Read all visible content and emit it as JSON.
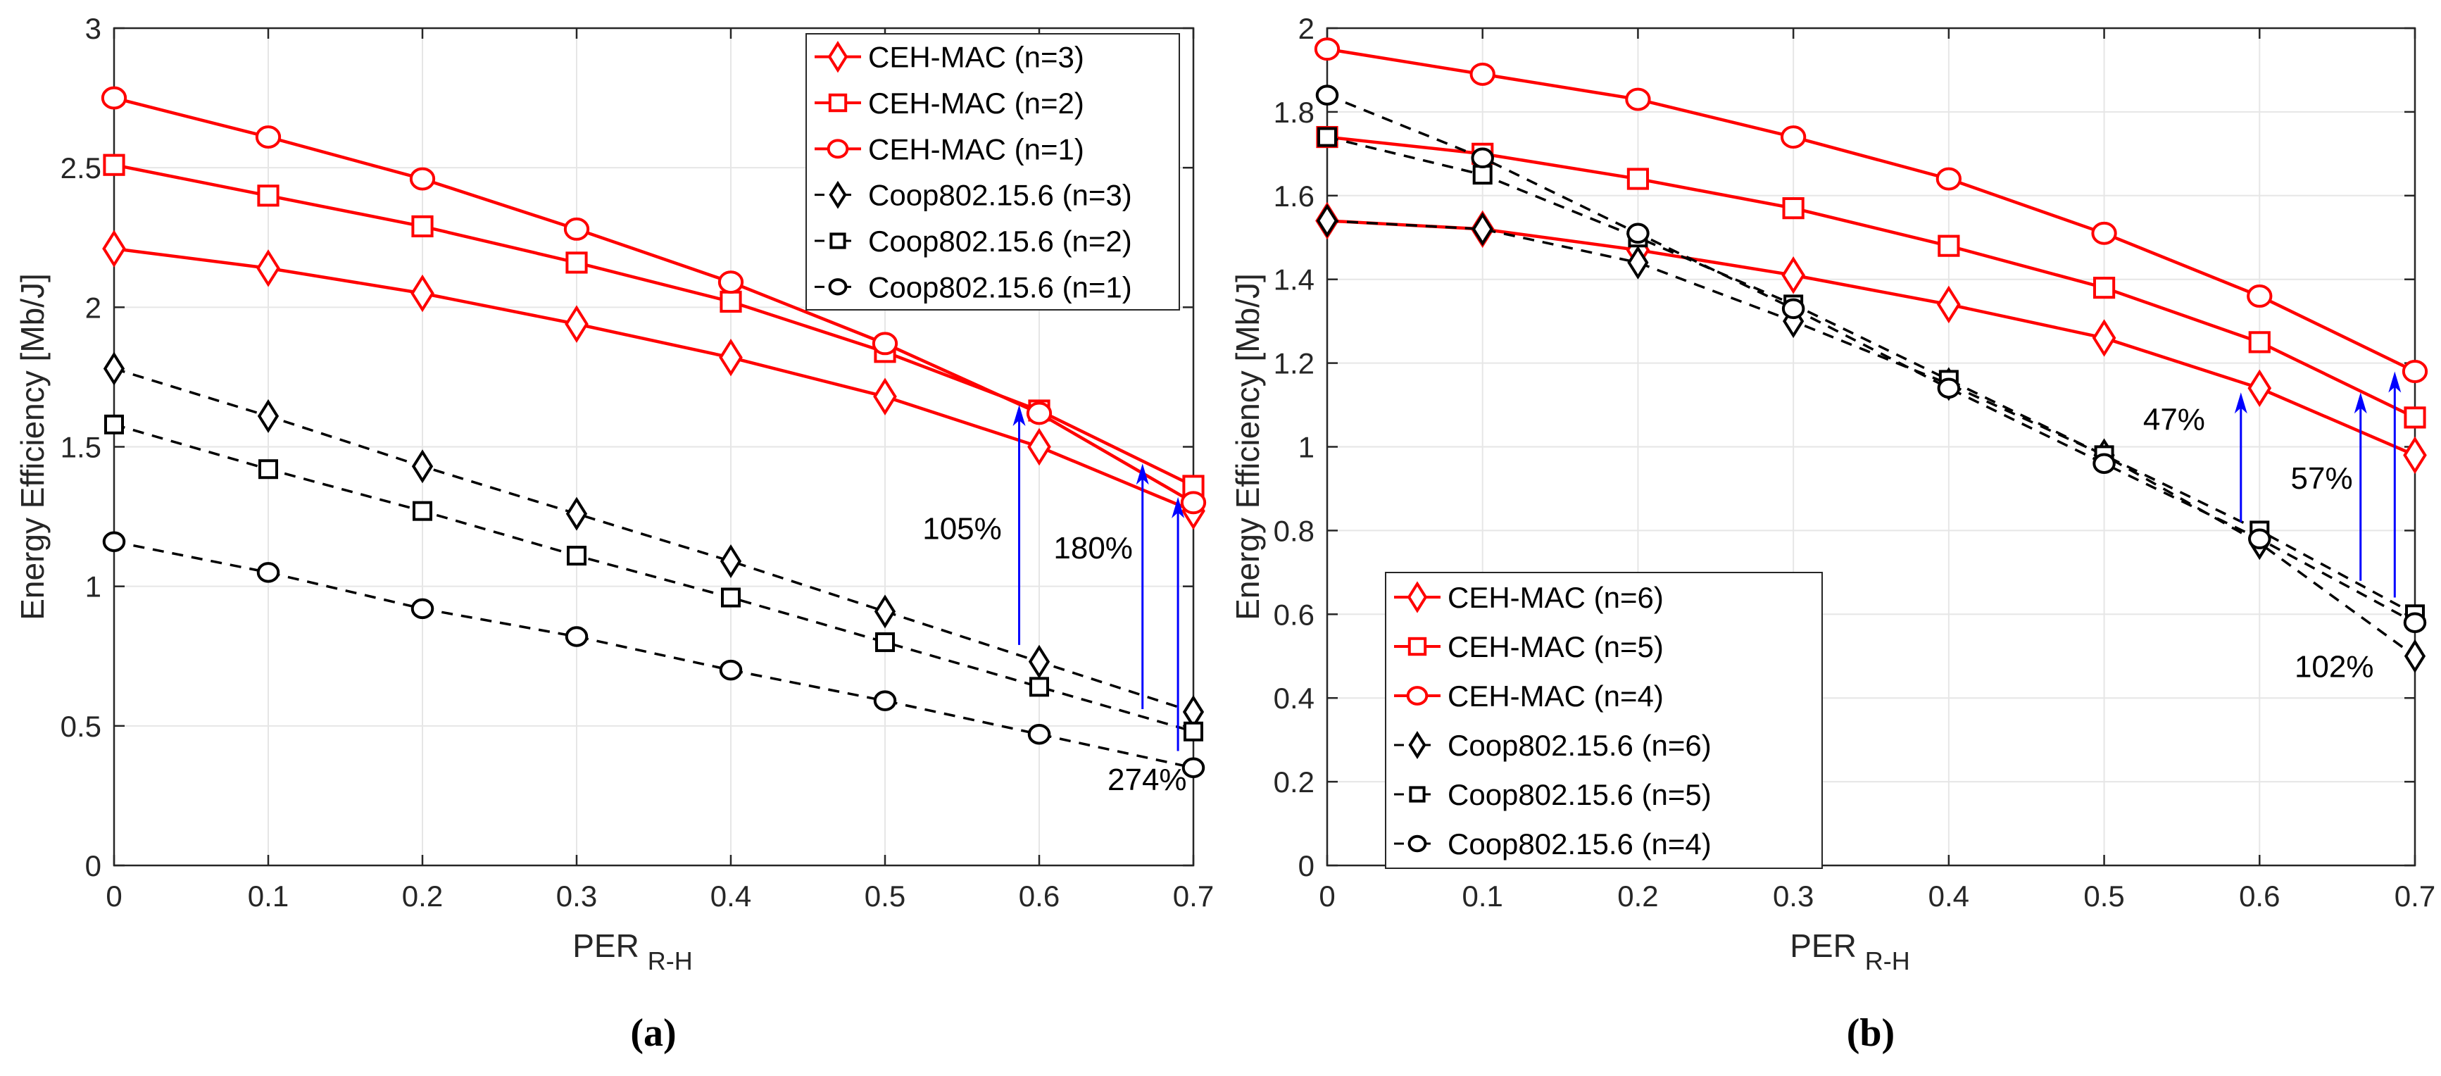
{
  "chart_data": [
    {
      "type": "line",
      "panel": "(a)",
      "xlabel": "PER",
      "xlabel_sub": "R-H",
      "ylabel": "Energy Efficiency [Mb/J]",
      "xlim": [
        0,
        0.7
      ],
      "ylim": [
        0,
        3
      ],
      "grid": true,
      "legend_position": "top-right",
      "x": [
        0,
        0.1,
        0.2,
        0.3,
        0.4,
        0.5,
        0.6,
        0.7
      ],
      "xticks": [
        "0",
        "0.1",
        "0.2",
        "0.3",
        "0.4",
        "0.5",
        "0.6",
        "0.7"
      ],
      "yticks": [
        0,
        0.5,
        1,
        1.5,
        2,
        2.5,
        3
      ],
      "ytick_labels": [
        "0",
        "0.5",
        "1",
        "1.5",
        "2",
        "2.5",
        "3"
      ],
      "series": [
        {
          "name": "CEH-MAC (n=3)",
          "marker": "diamond",
          "color": "#ff0000",
          "dash": false,
          "values": [
            2.21,
            2.14,
            2.05,
            1.94,
            1.82,
            1.68,
            1.5,
            1.27
          ]
        },
        {
          "name": "CEH-MAC (n=2)",
          "marker": "square",
          "color": "#ff0000",
          "dash": false,
          "values": [
            2.51,
            2.4,
            2.29,
            2.16,
            2.02,
            1.84,
            1.63,
            1.36
          ]
        },
        {
          "name": "CEH-MAC (n=1)",
          "marker": "circle",
          "color": "#ff0000",
          "dash": false,
          "values": [
            2.75,
            2.61,
            2.46,
            2.28,
            2.09,
            1.87,
            1.62,
            1.3
          ]
        },
        {
          "name": "Coop802.15.6 (n=3)",
          "marker": "diamond",
          "color": "#000000",
          "dash": true,
          "values": [
            1.78,
            1.61,
            1.43,
            1.26,
            1.09,
            0.91,
            0.73,
            0.55
          ]
        },
        {
          "name": "Coop802.15.6 (n=2)",
          "marker": "square",
          "color": "#000000",
          "dash": true,
          "values": [
            1.58,
            1.42,
            1.27,
            1.11,
            0.96,
            0.8,
            0.64,
            0.48
          ]
        },
        {
          "name": "Coop802.15.6 (n=1)",
          "marker": "circle",
          "color": "#000000",
          "dash": true,
          "values": [
            1.16,
            1.05,
            0.92,
            0.82,
            0.7,
            0.59,
            0.47,
            0.35
          ]
        }
      ],
      "annotations": [
        {
          "text": "105%",
          "arrow_x": 0.587,
          "from": 0.79,
          "to": 1.65,
          "label_x": 0.55,
          "label_y": 1.17
        },
        {
          "text": "180%",
          "arrow_x": 0.667,
          "from": 0.56,
          "to": 1.44,
          "label_x": 0.635,
          "label_y": 1.1
        },
        {
          "text": "274%",
          "arrow_x": 0.69,
          "from": 0.41,
          "to": 1.32,
          "label_x": 0.67,
          "label_y": 0.27
        }
      ]
    },
    {
      "type": "line",
      "panel": "(b)",
      "xlabel": "PER",
      "xlabel_sub": "R-H",
      "ylabel": "Energy Efficiency [Mb/J]",
      "xlim": [
        0,
        0.7
      ],
      "ylim": [
        0,
        2
      ],
      "grid": true,
      "legend_position": "bottom-left",
      "x": [
        0,
        0.1,
        0.2,
        0.3,
        0.4,
        0.5,
        0.6,
        0.7
      ],
      "xticks": [
        "0",
        "0.1",
        "0.2",
        "0.3",
        "0.4",
        "0.5",
        "0.6",
        "0.7"
      ],
      "yticks": [
        0,
        0.2,
        0.4,
        0.6,
        0.8,
        1,
        1.2,
        1.4,
        1.6,
        1.8,
        2
      ],
      "ytick_labels": [
        "0",
        "0.2",
        "0.4",
        "0.6",
        "0.8",
        "1",
        "1.2",
        "1.4",
        "1.6",
        "1.8",
        "2"
      ],
      "series": [
        {
          "name": "CEH-MAC (n=6)",
          "marker": "diamond",
          "color": "#ff0000",
          "dash": false,
          "values": [
            1.54,
            1.52,
            1.47,
            1.41,
            1.34,
            1.26,
            1.14,
            0.98
          ]
        },
        {
          "name": "CEH-MAC (n=5)",
          "marker": "square",
          "color": "#ff0000",
          "dash": false,
          "values": [
            1.74,
            1.7,
            1.64,
            1.57,
            1.48,
            1.38,
            1.25,
            1.07
          ]
        },
        {
          "name": "CEH-MAC (n=4)",
          "marker": "circle",
          "color": "#ff0000",
          "dash": false,
          "values": [
            1.95,
            1.89,
            1.83,
            1.74,
            1.64,
            1.51,
            1.36,
            1.18
          ]
        },
        {
          "name": "Coop802.15.6 (n=6)",
          "marker": "diamond",
          "color": "#000000",
          "dash": true,
          "values": [
            1.54,
            1.52,
            1.44,
            1.3,
            1.15,
            0.98,
            0.77,
            0.5
          ]
        },
        {
          "name": "Coop802.15.6 (n=5)",
          "marker": "square",
          "color": "#000000",
          "dash": true,
          "values": [
            1.74,
            1.65,
            1.5,
            1.34,
            1.16,
            0.98,
            0.8,
            0.6
          ]
        },
        {
          "name": "Coop802.15.6 (n=4)",
          "marker": "circle",
          "color": "#000000",
          "dash": true,
          "values": [
            1.84,
            1.69,
            1.51,
            1.33,
            1.14,
            0.96,
            0.78,
            0.58
          ]
        }
      ],
      "annotations": [
        {
          "text": "47%",
          "arrow_x": 0.588,
          "from": 0.82,
          "to": 1.13,
          "label_x": 0.545,
          "label_y": 1.04
        },
        {
          "text": "57%",
          "arrow_x": 0.665,
          "from": 0.68,
          "to": 1.13,
          "label_x": 0.64,
          "label_y": 0.9
        },
        {
          "text": "102%",
          "arrow_x": 0.687,
          "from": 0.64,
          "to": 1.18,
          "label_x": 0.648,
          "label_y": 0.45
        }
      ]
    }
  ]
}
